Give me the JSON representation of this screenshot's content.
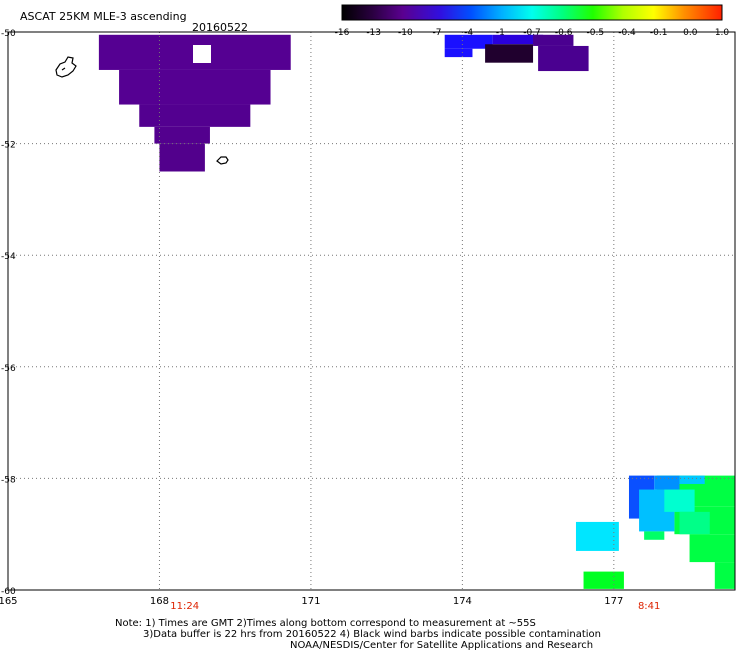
{
  "title": "ASCAT 25KM MLE-3 ascending",
  "date": "20160522",
  "colorbar": {
    "labels": [
      "-16",
      "-13",
      "-10",
      "-7",
      "-4",
      "-1",
      "-0.7",
      "-0.6",
      "-0.5",
      "-0.4",
      "-0.1",
      "0.0",
      "1.0"
    ]
  },
  "map": {
    "lon_min": 165,
    "lon_max": 179.4,
    "lat_min": -60,
    "lat_max": -50,
    "x_ticks": [
      {
        "value": 165,
        "label": "165"
      },
      {
        "value": 168,
        "label": "168"
      },
      {
        "value": 171,
        "label": "171"
      },
      {
        "value": 174,
        "label": "174"
      },
      {
        "value": 177,
        "label": "177"
      }
    ],
    "y_ticks": [
      {
        "value": -50,
        "label": "-50"
      },
      {
        "value": -52,
        "label": "-52"
      },
      {
        "value": -54,
        "label": "-54"
      },
      {
        "value": -56,
        "label": "-56"
      },
      {
        "value": -58,
        "label": "-58"
      },
      {
        "value": -60,
        "label": "-60"
      }
    ],
    "pass_times": [
      {
        "lon": 168.5,
        "label": "11:24",
        "color": "#dd2200"
      },
      {
        "lon": 177.7,
        "label": "8:41",
        "color": "#dd2200"
      }
    ],
    "swath_cells": [
      {
        "lon0": 166.8,
        "lon1": 170.6,
        "lat0": -50.68,
        "lat1": -50.05,
        "color": "#550092"
      },
      {
        "lon0": 167.2,
        "lon1": 170.2,
        "lat0": -51.3,
        "lat1": -50.68,
        "color": "#550092"
      },
      {
        "lon0": 167.6,
        "lon1": 169.8,
        "lat0": -51.7,
        "lat1": -51.3,
        "color": "#530090"
      },
      {
        "lon0": 167.9,
        "lon1": 169.0,
        "lat0": -52.0,
        "lat1": -51.7,
        "color": "#53008e"
      },
      {
        "lon0": 168.0,
        "lon1": 168.9,
        "lat0": -52.5,
        "lat1": -52.0,
        "color": "#52008c"
      },
      {
        "lon0": 173.65,
        "lon1": 174.6,
        "lat0": -50.3,
        "lat1": -50.05,
        "color": "#1a10ff"
      },
      {
        "lon0": 173.65,
        "lon1": 174.2,
        "lat0": -50.45,
        "lat1": -50.3,
        "color": "#1a10ff"
      },
      {
        "lon0": 174.6,
        "lon1": 175.6,
        "lat0": -50.22,
        "lat1": -50.05,
        "color": "#2a00dd"
      },
      {
        "lon0": 174.45,
        "lon1": 175.4,
        "lat0": -50.55,
        "lat1": -50.22,
        "color": "#20002e"
      },
      {
        "lon0": 175.4,
        "lon1": 176.2,
        "lat0": -50.25,
        "lat1": -50.05,
        "color": "#4a0090"
      },
      {
        "lon0": 175.5,
        "lon1": 176.5,
        "lat0": -50.7,
        "lat1": -50.25,
        "color": "#4a0090"
      },
      {
        "lon0": 176.25,
        "lon1": 177.1,
        "lat0": -59.3,
        "lat1": -58.78,
        "color": "#00e6ff"
      },
      {
        "lon0": 176.4,
        "lon1": 177.2,
        "lat0": -59.98,
        "lat1": -59.67,
        "color": "#00ff22"
      },
      {
        "lon0": 177.85,
        "lon1": 179.4,
        "lat0": -58.5,
        "lat1": -57.95,
        "color": "#00ff44"
      },
      {
        "lon0": 178.2,
        "lon1": 179.4,
        "lat0": -59.0,
        "lat1": -58.5,
        "color": "#00ff44"
      },
      {
        "lon0": 178.5,
        "lon1": 179.4,
        "lat0": -59.5,
        "lat1": -59.0,
        "color": "#00ff44"
      },
      {
        "lon0": 179.0,
        "lon1": 179.4,
        "lat0": -59.98,
        "lat1": -59.5,
        "color": "#00ff44"
      },
      {
        "lon0": 177.3,
        "lon1": 177.8,
        "lat0": -58.72,
        "lat1": -57.95,
        "color": "#0a50ff"
      },
      {
        "lon0": 177.8,
        "lon1": 178.3,
        "lat0": -58.2,
        "lat1": -57.95,
        "color": "#0090ff"
      },
      {
        "lon0": 178.3,
        "lon1": 178.8,
        "lat0": -58.1,
        "lat1": -57.95,
        "color": "#00c8ff"
      },
      {
        "lon0": 177.5,
        "lon1": 178.2,
        "lat0": -58.95,
        "lat1": -58.2,
        "color": "#00c0ff"
      },
      {
        "lon0": 178.0,
        "lon1": 178.6,
        "lat0": -58.6,
        "lat1": -58.2,
        "color": "#00ffd0"
      },
      {
        "lon0": 178.3,
        "lon1": 178.9,
        "lat0": -59.0,
        "lat1": -58.6,
        "color": "#00ff88"
      },
      {
        "lon0": 177.6,
        "lon1": 178.0,
        "lat0": -59.1,
        "lat1": -58.95,
        "color": "#00ff66"
      }
    ]
  },
  "footer": {
    "line1": "Note: 1) Times are GMT 2)Times along bottom correspond to measurement at ~55S",
    "line2": "3)Data buffer is 22 hrs from 20160522 4) Black wind barbs indicate possible contamination",
    "line3": "NOAA/NESDIS/Center for Satellite Applications and Research"
  }
}
